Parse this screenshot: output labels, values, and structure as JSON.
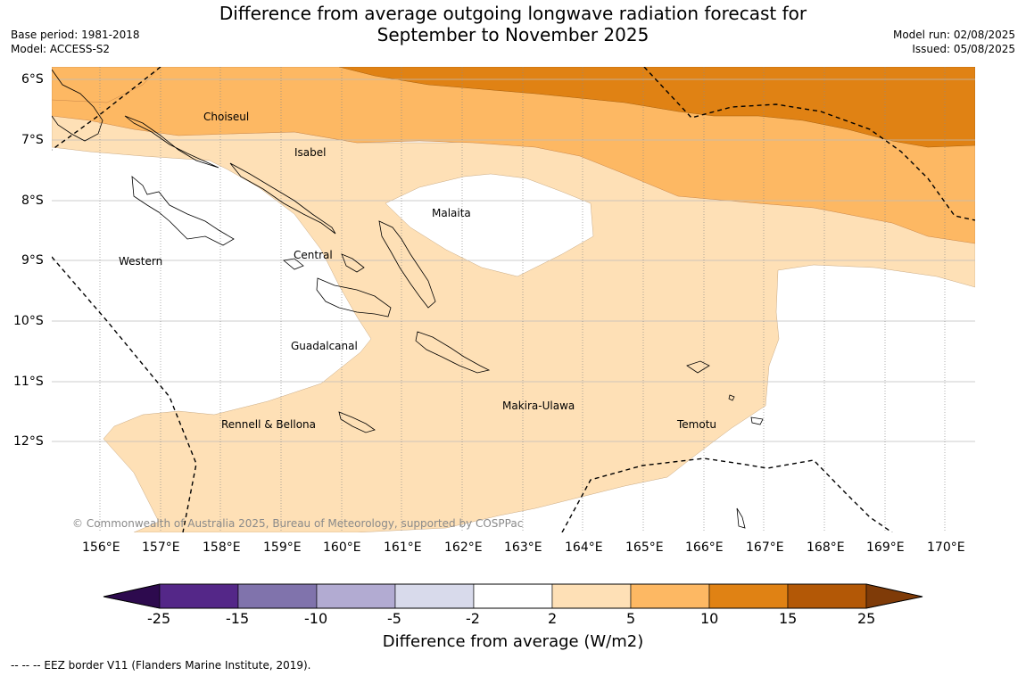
{
  "title_line1": "Difference from average outgoing longwave radiation forecast for",
  "title_line2": "September to November 2025",
  "base_period": "Base period: 1981-2018",
  "model": "Model: ACCESS-S2",
  "model_run": "Model run: 02/08/2025",
  "issued": "Issued: 05/08/2025",
  "regions": {
    "choiseul": "Choiseul",
    "isabel": "Isabel",
    "malaita": "Malaita",
    "western": "Western",
    "central": "Central",
    "guadalcanal": "Guadalcanal",
    "rennell": "Rennell & Bellona",
    "makira": "Makira-Ulawa",
    "temotu": "Temotu"
  },
  "lat_ticks": [
    "6°S",
    "7°S",
    "8°S",
    "9°S",
    "10°S",
    "11°S",
    "12°S"
  ],
  "lon_ticks": [
    "156°E",
    "157°E",
    "158°E",
    "159°E",
    "160°E",
    "161°E",
    "162°E",
    "163°E",
    "164°E",
    "165°E",
    "166°E",
    "167°E",
    "168°E",
    "169°E",
    "170°E"
  ],
  "copyright": "© Commonwealth of Australia 2025, Bureau of Meteorology, supported by COSPPac",
  "colorbar": {
    "label": "Difference from average (W/m2)",
    "ticks": [
      "-25",
      "-15",
      "-10",
      "-5",
      "-2",
      "2",
      "5",
      "10",
      "15",
      "25"
    ],
    "colors": {
      "under": "#2d0a4e",
      "b1": "#542788",
      "b2": "#8073ac",
      "b3": "#b2abd2",
      "b4": "#d8daeb",
      "b5": "#ffffff",
      "b6": "#fee0b6",
      "b7": "#fdb863",
      "b8": "#e08214",
      "b9": "#b35806",
      "over": "#7f3b08"
    }
  },
  "eez_note": "--  --  -- EEZ border V11 (Flanders Marine Institute, 2019)."
}
